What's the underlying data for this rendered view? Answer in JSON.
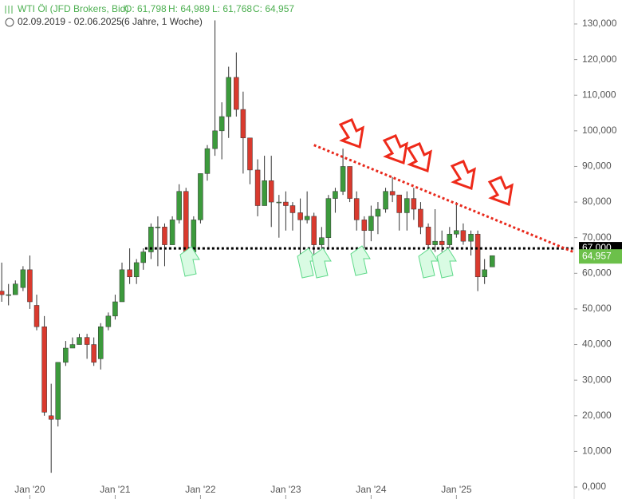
{
  "chart_data": {
    "type": "candlestick",
    "title": "WTI Öl (JFD Brokers, Bid)",
    "ohlc_labels": [
      "O: 61,798",
      "H: 64,989",
      "L: 61,768",
      "C: 64,957"
    ],
    "subtitle": "02.09.2019 - 02.06.2025",
    "span": "(6 Jahre, 1 Woche)",
    "up_color": "#3c9a3c",
    "down_color": "#d93a2e",
    "x": [
      2019.67,
      2019.75,
      2019.83,
      2019.92,
      2020.0,
      2020.08,
      2020.17,
      2020.25,
      2020.33,
      2020.42,
      2020.5,
      2020.58,
      2020.67,
      2020.75,
      2020.83,
      2020.92,
      2021.0,
      2021.08,
      2021.17,
      2021.25,
      2021.33,
      2021.42,
      2021.5,
      2021.58,
      2021.67,
      2021.75,
      2021.83,
      2021.92,
      2022.0,
      2022.08,
      2022.17,
      2022.25,
      2022.33,
      2022.42,
      2022.5,
      2022.58,
      2022.67,
      2022.75,
      2022.83,
      2022.92,
      2023.0,
      2023.08,
      2023.17,
      2023.25,
      2023.33,
      2023.42,
      2023.5,
      2023.58,
      2023.67,
      2023.75,
      2023.83,
      2023.92,
      2024.0,
      2024.08,
      2024.17,
      2024.25,
      2024.33,
      2024.42,
      2024.5,
      2024.58,
      2024.67,
      2024.75,
      2024.83,
      2024.92,
      2025.0,
      2025.08,
      2025.17,
      2025.25,
      2025.33,
      2025.42
    ],
    "open": [
      55,
      54,
      54,
      56,
      61,
      51,
      45,
      20,
      19,
      35,
      39,
      40,
      42,
      40,
      36,
      45,
      48,
      52,
      61,
      59,
      63,
      66,
      73,
      73,
      68,
      75,
      83,
      66,
      75,
      88,
      95,
      100,
      104,
      115,
      106,
      98,
      89,
      79,
      86,
      80,
      80,
      79,
      77,
      75,
      76,
      68,
      70,
      81,
      83,
      90,
      81,
      75,
      72,
      76,
      78,
      83,
      82,
      77,
      81,
      78,
      73,
      68,
      69,
      68,
      71,
      72,
      69,
      71,
      59,
      61.798
    ],
    "high": [
      63,
      57,
      58,
      62,
      65,
      54,
      48,
      29,
      35,
      41,
      42,
      43,
      43,
      42,
      46,
      49,
      54,
      63,
      67,
      64,
      67,
      74,
      76,
      74,
      76,
      85,
      84,
      76,
      88,
      96,
      131,
      108,
      118,
      122,
      111,
      98,
      92,
      93,
      93,
      82,
      83,
      80,
      81,
      83,
      77,
      73,
      82,
      84,
      95,
      90,
      83,
      76,
      79,
      80,
      84,
      87,
      82,
      83,
      84,
      80,
      74,
      78,
      72,
      73,
      80,
      74,
      72,
      72,
      64,
      64.989
    ],
    "low": [
      52,
      51,
      55,
      55,
      50,
      44,
      20,
      4,
      17,
      34,
      39,
      40,
      36,
      34,
      33,
      44,
      47,
      52,
      57,
      57,
      61,
      64,
      62,
      62,
      68,
      74,
      62,
      65,
      74,
      86,
      93,
      92,
      98,
      104,
      88,
      85,
      76,
      79,
      73,
      70,
      72,
      72,
      64,
      74,
      63,
      66,
      67,
      77,
      82,
      80,
      72,
      67,
      69,
      71,
      77,
      80,
      72,
      72,
      75,
      71,
      65,
      66,
      66,
      67,
      70,
      68,
      65,
      55,
      57,
      61.768
    ],
    "close": [
      54,
      54,
      57,
      61,
      52,
      45,
      21,
      19,
      35,
      39,
      40,
      42,
      40,
      35,
      45,
      48,
      52,
      61,
      59,
      63,
      66,
      73,
      73,
      68,
      75,
      83,
      66,
      75,
      88,
      95,
      100,
      104,
      115,
      106,
      98,
      89,
      79,
      86,
      80,
      80,
      79,
      77,
      75,
      76,
      68,
      70,
      81,
      83,
      90,
      81,
      75,
      72,
      76,
      78,
      83,
      82,
      77,
      81,
      78,
      73,
      68,
      69,
      68,
      71,
      72,
      69,
      71,
      59,
      61,
      64.957
    ],
    "xlim": [
      2019.65,
      2026.38
    ],
    "xticks": [
      {
        "value": 2020,
        "label": "Jan '20"
      },
      {
        "value": 2021,
        "label": "Jan '21"
      },
      {
        "value": 2022,
        "label": "Jan '22"
      },
      {
        "value": 2023,
        "label": "Jan '23"
      },
      {
        "value": 2024,
        "label": "Jan '24"
      },
      {
        "value": 2025,
        "label": "Jan '25"
      }
    ],
    "ylim": [
      0,
      130
    ],
    "yticks": [
      {
        "value": 0,
        "label": "0,000"
      },
      {
        "value": 10,
        "label": "10,000"
      },
      {
        "value": 20,
        "label": "20,000"
      },
      {
        "value": 30,
        "label": "30,000"
      },
      {
        "value": 40,
        "label": "40,000"
      },
      {
        "value": 50,
        "label": "50,000"
      },
      {
        "value": 60,
        "label": "60,000"
      },
      {
        "value": 70,
        "label": "70,000"
      },
      {
        "value": 80,
        "label": "80,000"
      },
      {
        "value": 90,
        "label": "90,000"
      },
      {
        "value": 100,
        "label": "100,000"
      },
      {
        "value": 110,
        "label": "110,000"
      },
      {
        "value": 120,
        "label": "120,000"
      },
      {
        "value": 130,
        "label": "130,000"
      }
    ],
    "support": {
      "value": 67,
      "label": "67,000",
      "x": [
        2021.35,
        2026.38
      ]
    },
    "last": {
      "value": 64.957,
      "label": "64,957"
    },
    "trendline": {
      "x": [
        2023.33,
        2026.38
      ],
      "y": [
        96,
        65.9
      ]
    }
  }
}
